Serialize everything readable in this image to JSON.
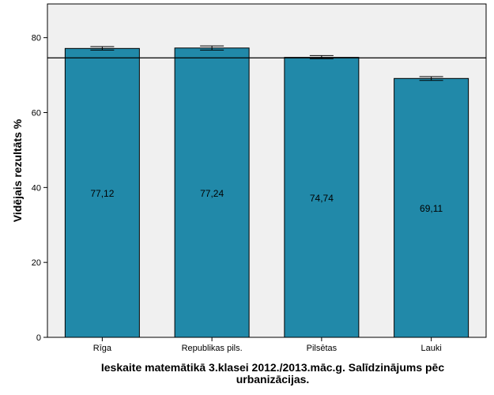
{
  "chart_data": {
    "type": "bar",
    "categories": [
      "Rīga",
      "Republikas pils.",
      "Pilsētas",
      "Lauki"
    ],
    "values": [
      77.12,
      77.24,
      74.74,
      69.11
    ],
    "value_labels": [
      "77,12",
      "77,24",
      "74,74",
      "69,11"
    ],
    "error_bars": [
      {
        "low": 76.7,
        "high": 77.6
      },
      {
        "low": 76.7,
        "high": 77.8
      },
      {
        "low": 74.4,
        "high": 75.2
      },
      {
        "low": 68.6,
        "high": 69.6
      }
    ],
    "reference_line": 74.6,
    "ylabel": "Vidējais rezultāts %",
    "xlabel_line1": "Ieskaite matemātikā 3.klasei 2012./2013.māc.g. Salīdzinājums pēc",
    "xlabel_line2": "urbanizācijas.",
    "ylim": [
      0,
      89
    ],
    "yticks": [
      0,
      20,
      40,
      60,
      80
    ],
    "grid": false,
    "bar_color": "#2189a9",
    "plot_background": "#f0f0f0"
  }
}
